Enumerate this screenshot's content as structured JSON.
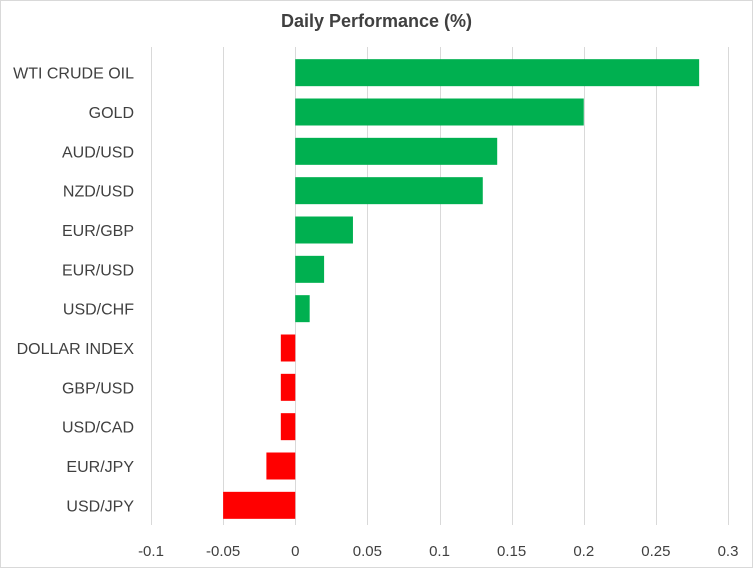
{
  "chart_data": {
    "type": "bar",
    "orientation": "horizontal",
    "title": "Daily Performance (%)",
    "categories": [
      "WTI CRUDE OIL",
      "GOLD",
      "AUD/USD",
      "NZD/USD",
      "EUR/GBP",
      "EUR/USD",
      "USD/CHF",
      "DOLLAR INDEX",
      "GBP/USD",
      "USD/CAD",
      "EUR/JPY",
      "USD/JPY"
    ],
    "values": [
      0.28,
      0.2,
      0.14,
      0.13,
      0.04,
      0.02,
      0.01,
      -0.01,
      -0.01,
      -0.01,
      -0.02,
      -0.05
    ],
    "xlim": [
      -0.1,
      0.3
    ],
    "xticks": [
      -0.1,
      -0.05,
      0,
      0.05,
      0.1,
      0.15,
      0.2,
      0.25,
      0.3
    ],
    "xtick_labels": [
      "-0.1",
      "-0.05",
      "0",
      "0.05",
      "0.1",
      "0.15",
      "0.2",
      "0.25",
      "0.3"
    ],
    "grid": "vertical",
    "legend": "none",
    "colors": {
      "positive": "#00b050",
      "negative": "#ff0000",
      "grid": "#d9d9d9",
      "text": "#404040"
    }
  }
}
